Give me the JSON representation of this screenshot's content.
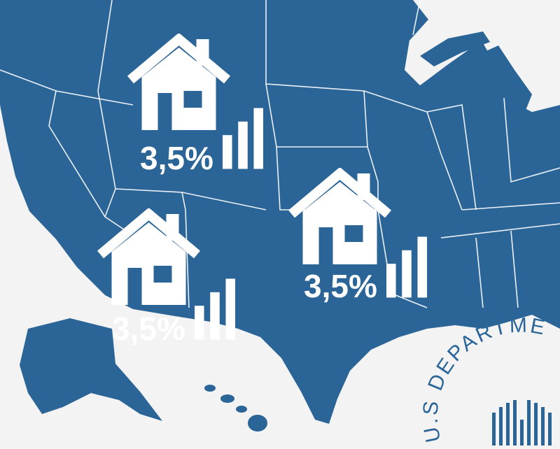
{
  "markers": [
    {
      "label": "3,5%"
    },
    {
      "label": "3,5%"
    },
    {
      "label": "3,5%"
    }
  ],
  "seal": {
    "text": "U.S DEPARTME"
  }
}
